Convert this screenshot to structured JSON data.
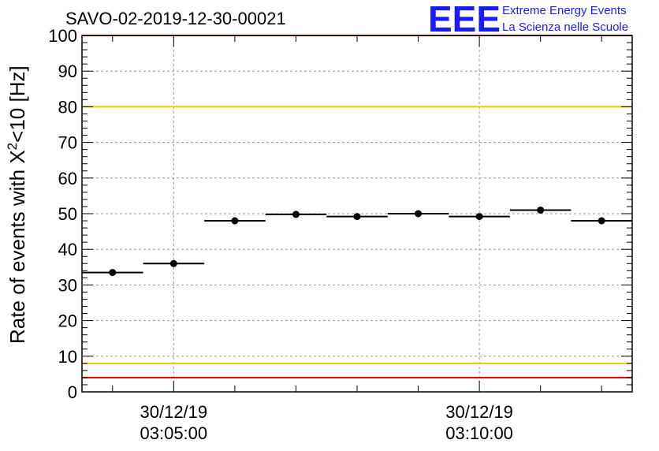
{
  "chart_data": {
    "type": "scatter",
    "title": "SAVO-02-2019-12-30-00021",
    "ylabel_main": "Rate of events with X",
    "ylabel_sup": "2",
    "ylabel_tail": "<10 [Hz]",
    "ylim": [
      0,
      100
    ],
    "yticks": [
      "0",
      "10",
      "20",
      "30",
      "40",
      "50",
      "60",
      "70",
      "80",
      "90",
      "100"
    ],
    "grid": true,
    "x_tick_labels": [
      {
        "date": "30/12/19",
        "time": "03:05:00"
      },
      {
        "date": "30/12/19",
        "time": "03:10:00"
      }
    ],
    "bins": [
      {
        "x_start": "03:03:30",
        "x_end": "03:04:30",
        "value": 33.5
      },
      {
        "x_start": "03:04:30",
        "x_end": "03:05:30",
        "value": 36.0
      },
      {
        "x_start": "03:05:30",
        "x_end": "03:06:30",
        "value": 48.0
      },
      {
        "x_start": "03:06:30",
        "x_end": "03:07:30",
        "value": 49.8
      },
      {
        "x_start": "03:07:30",
        "x_end": "03:08:30",
        "value": 49.2
      },
      {
        "x_start": "03:08:30",
        "x_end": "03:09:30",
        "value": 50.0
      },
      {
        "x_start": "03:09:30",
        "x_end": "03:10:30",
        "value": 49.2
      },
      {
        "x_start": "03:10:30",
        "x_end": "03:11:30",
        "value": 51.0
      },
      {
        "x_start": "03:11:30",
        "x_end": "03:12:30",
        "value": 48.0
      }
    ],
    "reference_lines": [
      {
        "value": 80,
        "color": "#f2c400"
      },
      {
        "value": 8,
        "color": "#f2c400"
      },
      {
        "value": 4,
        "color": "#e60000"
      },
      {
        "value": 100,
        "color": "#e60000"
      }
    ]
  },
  "logo": {
    "text": "EEE",
    "line1": "Extreme Energy Events",
    "line2": "La Scienza nelle Scuole",
    "color": "#1a1aff"
  }
}
